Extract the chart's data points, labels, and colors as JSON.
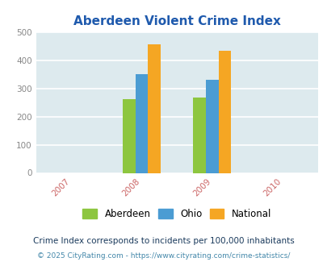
{
  "title": "Aberdeen Violent Crime Index",
  "groups": {
    "2008": {
      "Aberdeen": 263,
      "Ohio": 350,
      "National": 455
    },
    "2009": {
      "Aberdeen": 268,
      "Ohio": 331,
      "National": 433
    }
  },
  "colors": {
    "Aberdeen": "#8dc63f",
    "Ohio": "#4b9cd3",
    "National": "#f5a623"
  },
  "ylim": [
    0,
    500
  ],
  "yticks": [
    0,
    100,
    200,
    300,
    400,
    500
  ],
  "xticks": [
    2007,
    2008,
    2009,
    2010
  ],
  "bar_width": 0.18,
  "legend_labels": [
    "Aberdeen",
    "Ohio",
    "National"
  ],
  "footnote1": "Crime Index corresponds to incidents per 100,000 inhabitants",
  "footnote2": "© 2025 CityRating.com - https://www.cityrating.com/crime-statistics/",
  "title_color": "#1f5aad",
  "bg_color": "#ddeaee",
  "grid_color": "#ffffff",
  "footnote1_color": "#1a3a5c",
  "footnote2_color": "#4488aa",
  "tick_color": "#cc6666",
  "title_fontsize": 11,
  "legend_fontsize": 8.5,
  "footnote1_fontsize": 7.5,
  "footnote2_fontsize": 6.5
}
